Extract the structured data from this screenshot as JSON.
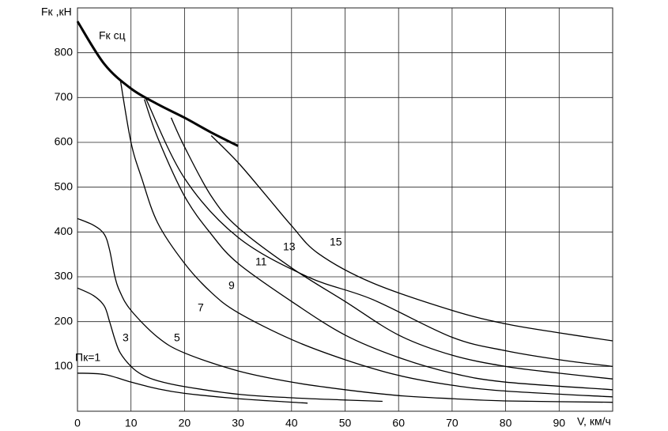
{
  "chart_data": {
    "type": "line",
    "ylabel": "Fк ,кН",
    "xlabel": "V, км/ч",
    "xlim": [
      0,
      100
    ],
    "ylim": [
      0,
      900
    ],
    "xticks": [
      0,
      10,
      20,
      30,
      40,
      50,
      60,
      70,
      80,
      90
    ],
    "yticks": [
      100,
      200,
      300,
      400,
      500,
      600,
      700,
      800
    ],
    "grid": true,
    "series": [
      {
        "name": "Fк сц",
        "color": "#000000",
        "x": [
          0,
          5,
          10,
          15,
          20,
          25,
          30
        ],
        "values": [
          870,
          775,
          720,
          685,
          655,
          622,
          592
        ]
      },
      {
        "name": "Пк=1",
        "color": "#000000",
        "x": [
          0,
          5,
          10,
          15,
          20,
          30,
          43
        ],
        "values": [
          85,
          82,
          65,
          50,
          40,
          28,
          18
        ]
      },
      {
        "name": "3",
        "color": "#000000",
        "x": [
          0,
          3,
          5,
          6,
          7,
          8,
          10,
          12,
          15,
          20,
          30,
          40,
          50,
          57
        ],
        "values": [
          275,
          258,
          235,
          200,
          160,
          130,
          100,
          82,
          68,
          55,
          38,
          30,
          25,
          22
        ]
      },
      {
        "name": "5",
        "color": "#000000",
        "x": [
          0,
          3,
          5,
          6,
          7,
          8,
          10,
          15,
          20,
          30,
          40,
          50,
          60,
          70,
          80,
          100
        ],
        "values": [
          430,
          415,
          395,
          360,
          300,
          265,
          225,
          165,
          130,
          90,
          65,
          48,
          35,
          28,
          23,
          20
        ]
      },
      {
        "name": "7",
        "color": "#000000",
        "x": [
          8,
          10,
          12,
          15,
          20,
          25,
          30,
          40,
          50,
          60,
          70,
          80,
          100
        ],
        "values": [
          740,
          600,
          520,
          420,
          330,
          265,
          220,
          160,
          115,
          80,
          58,
          45,
          32
        ]
      },
      {
        "name": "9",
        "color": "#000000",
        "x": [
          12.5,
          15,
          20,
          25,
          30,
          40,
          50,
          60,
          70,
          80,
          100
        ],
        "values": [
          696,
          610,
          480,
          395,
          330,
          245,
          170,
          120,
          85,
          65,
          48
        ]
      },
      {
        "name": "11",
        "color": "#000000",
        "x": [
          17.5,
          20,
          25,
          30,
          40,
          50,
          60,
          70,
          80,
          90,
          100
        ],
        "values": [
          655,
          590,
          480,
          410,
          320,
          245,
          170,
          125,
          100,
          85,
          72
        ]
      },
      {
        "name": "13",
        "color": "#000000",
        "x": [
          12.8,
          20,
          30,
          43,
          55,
          70,
          80,
          90,
          100
        ],
        "values": [
          697,
          520,
          388,
          300,
          250,
          165,
          135,
          115,
          100
        ]
      },
      {
        "name": "15",
        "color": "#000000",
        "x": [
          25,
          30,
          35,
          40,
          45,
          55,
          70,
          80,
          90,
          100
        ],
        "values": [
          615,
          555,
          485,
          414,
          352,
          287,
          225,
          195,
          175,
          157
        ]
      }
    ]
  }
}
